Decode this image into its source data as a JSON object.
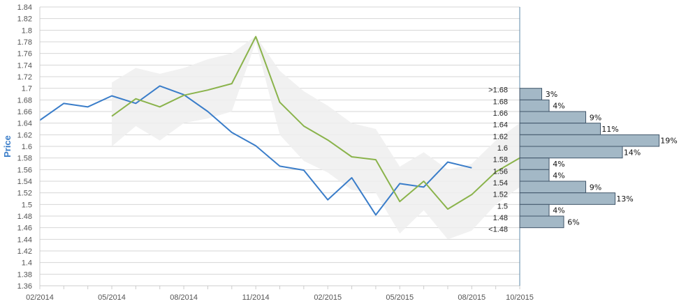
{
  "chart_data": {
    "type": "line",
    "ylabel": "Price",
    "ylim": [
      1.36,
      1.84
    ],
    "y_ticks": [
      "1.36",
      "1.38",
      "1.4",
      "1.42",
      "1.44",
      "1.46",
      "1.48",
      "1.5",
      "1.52",
      "1.54",
      "1.56",
      "1.58",
      "1.6",
      "1.62",
      "1.64",
      "1.66",
      "1.68",
      "1.7",
      "1.72",
      "1.74",
      "1.76",
      "1.78",
      "1.8",
      "1.82",
      "1.84"
    ],
    "x_ticks": [
      "02/2014",
      "05/2014",
      "08/2014",
      "11/2014",
      "02/2015",
      "05/2015",
      "08/2015",
      "10/2015"
    ],
    "grid": true,
    "colors": {
      "blue": "#3a7dc9",
      "green": "#8ab34b",
      "band": "#eeeeee",
      "hist": "#a3b8c6"
    },
    "series": [
      {
        "color": "#3a7dc9",
        "x": [
          "2014-02",
          "2014-03",
          "2014-04",
          "2014-05",
          "2014-06",
          "2014-07",
          "2014-08",
          "2014-09",
          "2014-10",
          "2014-11",
          "2014-12",
          "2015-01",
          "2015-02",
          "2015-03",
          "2015-04",
          "2015-05",
          "2015-06",
          "2015-07",
          "2015-08"
        ],
        "values": [
          1.645,
          1.674,
          1.668,
          1.687,
          1.674,
          1.704,
          1.689,
          1.66,
          1.624,
          1.601,
          1.566,
          1.559,
          1.508,
          1.546,
          1.482,
          1.536,
          1.53,
          1.573,
          1.563
        ]
      },
      {
        "color": "#8ab34b",
        "x": [
          "2014-05",
          "2014-06",
          "2014-07",
          "2014-08",
          "2014-09",
          "2014-10",
          "2014-11",
          "2014-12",
          "2015-01",
          "2015-02",
          "2015-03",
          "2015-04",
          "2015-05",
          "2015-06",
          "2015-07",
          "2015-08",
          "2015-09",
          "2015-10"
        ],
        "values": [
          1.652,
          1.682,
          1.668,
          1.688,
          1.697,
          1.708,
          1.789,
          1.676,
          1.635,
          1.611,
          1.582,
          1.577,
          1.505,
          1.54,
          1.492,
          1.517,
          1.556,
          1.58
        ]
      }
    ],
    "band": {
      "x": [
        "2014-05",
        "2014-06",
        "2014-07",
        "2014-08",
        "2014-09",
        "2014-10",
        "2014-11",
        "2014-12",
        "2015-01",
        "2015-02",
        "2015-03",
        "2015-04",
        "2015-05",
        "2015-06",
        "2015-07",
        "2015-08",
        "2015-09",
        "2015-10"
      ],
      "upper": [
        1.71,
        1.735,
        1.725,
        1.735,
        1.75,
        1.76,
        1.79,
        1.73,
        1.695,
        1.67,
        1.64,
        1.63,
        1.565,
        1.59,
        1.56,
        1.57,
        1.61,
        1.64
      ],
      "lower": [
        1.6,
        1.635,
        1.61,
        1.64,
        1.648,
        1.66,
        1.78,
        1.62,
        1.575,
        1.555,
        1.525,
        1.52,
        1.45,
        1.49,
        1.44,
        1.455,
        1.5,
        1.53
      ]
    },
    "histogram": [
      {
        "label": ">1.68",
        "percent": 3,
        "pct_label": "3%"
      },
      {
        "label": "1.68",
        "percent": 4,
        "pct_label": "4%"
      },
      {
        "label": "1.66",
        "percent": 9,
        "pct_label": "9%"
      },
      {
        "label": "1.64",
        "percent": 11,
        "pct_label": "11%"
      },
      {
        "label": "1.62",
        "percent": 19,
        "pct_label": "19%"
      },
      {
        "label": "1.6",
        "percent": 14,
        "pct_label": "14%"
      },
      {
        "label": "1.58",
        "percent": 4,
        "pct_label": "4%"
      },
      {
        "label": "1.56",
        "percent": 4,
        "pct_label": "4%"
      },
      {
        "label": "1.54",
        "percent": 9,
        "pct_label": "9%"
      },
      {
        "label": "1.52",
        "percent": 13,
        "pct_label": "13%"
      },
      {
        "label": "1.5",
        "percent": 4,
        "pct_label": "4%"
      },
      {
        "label": "1.48",
        "percent": 6,
        "pct_label": "6%"
      },
      {
        "label": "<1.48",
        "percent": 0,
        "pct_label": ""
      }
    ]
  }
}
